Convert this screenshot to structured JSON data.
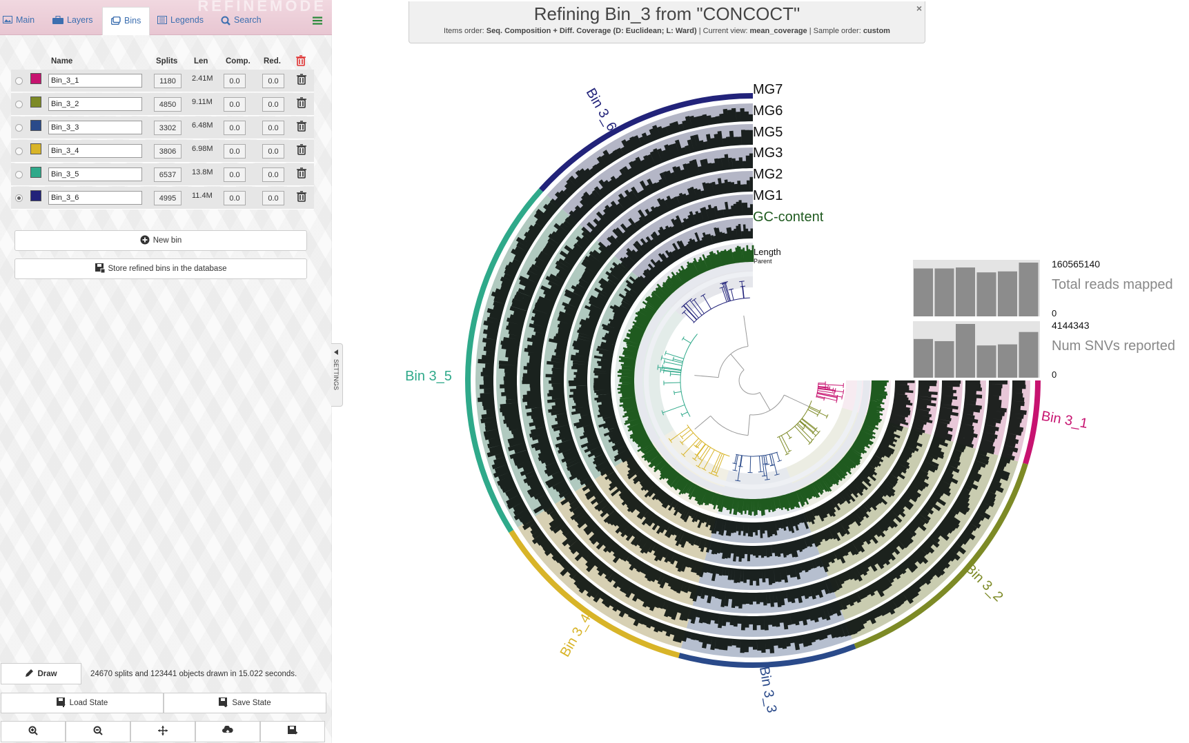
{
  "tabs": {
    "watermark": "REFINEMODE",
    "items": [
      {
        "label": "Main"
      },
      {
        "label": "Layers"
      },
      {
        "label": "Bins"
      },
      {
        "label": "Legends"
      },
      {
        "label": "Search"
      }
    ]
  },
  "bins_table": {
    "headers": {
      "name": "Name",
      "splits": "Splits",
      "len": "Len",
      "comp": "Comp.",
      "red": "Red."
    },
    "rows": [
      {
        "name": "Bin_3_1",
        "color": "#c71370",
        "splits": "1180",
        "len": "2.41M",
        "comp": "0.0",
        "red": "0.0",
        "selected": false
      },
      {
        "name": "Bin_3_2",
        "color": "#7d8a26",
        "splits": "4850",
        "len": "9.11M",
        "comp": "0.0",
        "red": "0.0",
        "selected": false
      },
      {
        "name": "Bin_3_3",
        "color": "#2a4a8a",
        "splits": "3302",
        "len": "6.48M",
        "comp": "0.0",
        "red": "0.0",
        "selected": false
      },
      {
        "name": "Bin_3_4",
        "color": "#d8b428",
        "splits": "3806",
        "len": "6.98M",
        "comp": "0.0",
        "red": "0.0",
        "selected": false
      },
      {
        "name": "Bin_3_5",
        "color": "#2fa98a",
        "splits": "6537",
        "len": "13.8M",
        "comp": "0.0",
        "red": "0.0",
        "selected": false
      },
      {
        "name": "Bin_3_6",
        "color": "#22237a",
        "splits": "4995",
        "len": "11.4M",
        "comp": "0.0",
        "red": "0.0",
        "selected": true
      }
    ],
    "new_bin_label": "New bin",
    "store_label": "Store refined bins in the database"
  },
  "bottom": {
    "draw_label": "Draw",
    "status_text": "24670 splits and 123441 objects drawn in 15.022 seconds.",
    "load_state_label": "Load State",
    "save_state_label": "Save State"
  },
  "settings_tab_label": "SETTINGS",
  "header": {
    "title": "Refining Bin_3 from \"CONCOCT\"",
    "items_order_label": "Items order:",
    "items_order_value": "Seq. Composition + Diff. Coverage (D: Euclidean; L: Ward)",
    "current_view_label": "Current view:",
    "current_view_value": "mean_coverage",
    "sample_order_label": "Sample order:",
    "sample_order_value": "custom",
    "close_symbol": "×"
  },
  "layers": {
    "labels": [
      "MG7",
      "MG6",
      "MG5",
      "MG3",
      "MG2",
      "MG1",
      "GC-content",
      "Length",
      "Parent"
    ],
    "gc_color": "#1f5a1f"
  },
  "bin_labels": [
    "Bin 3_1",
    "Bin 3_2",
    "Bin 3_3",
    "Bin 3_4",
    "Bin 3_5",
    "Bin 3_6"
  ],
  "sample_bars": {
    "total_reads": {
      "label": "Total reads mapped",
      "max": "160565140",
      "min": "0",
      "values": [
        0.98,
        0.98,
        1.0,
        0.9,
        0.92,
        1.1
      ]
    },
    "num_snvs": {
      "label": "Num SNVs reported",
      "max": "4144343",
      "min": "0",
      "values": [
        0.72,
        0.68,
        1.0,
        0.6,
        0.62,
        0.85
      ]
    }
  }
}
